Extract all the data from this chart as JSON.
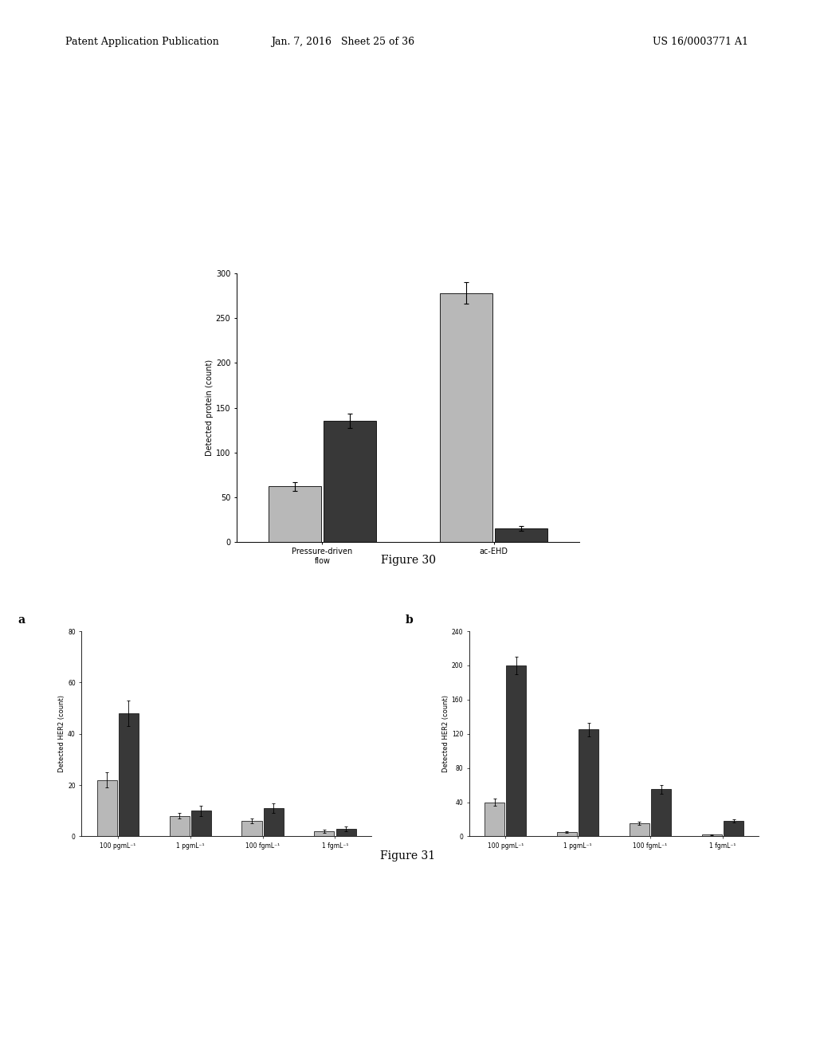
{
  "fig30": {
    "ylabel": "Detected protein (count)",
    "ylim": [
      0,
      300
    ],
    "yticks": [
      0,
      50,
      100,
      150,
      200,
      250,
      300
    ],
    "groups": [
      "Pressure-driven\nflow",
      "ac-EHD"
    ],
    "bar_values": [
      [
        62,
        135
      ],
      [
        278,
        15
      ]
    ],
    "bar_errors": [
      [
        5,
        8
      ],
      [
        12,
        3
      ]
    ],
    "bar_colors": [
      "#b8b8b8",
      "#383838"
    ]
  },
  "fig31a": {
    "panel_label": "a",
    "ylabel": "Detected HER2 (count)",
    "ylim": [
      0,
      80
    ],
    "yticks": [
      0,
      20,
      40,
      60,
      80
    ],
    "categories": [
      "100 pgmL⁻¹",
      "1 pgmL⁻¹",
      "100 fgmL⁻¹",
      "1 fgmL⁻¹"
    ],
    "bar_values": [
      [
        22,
        48
      ],
      [
        8,
        10
      ],
      [
        6,
        11
      ],
      [
        2,
        3
      ]
    ],
    "bar_errors": [
      [
        3,
        5
      ],
      [
        1,
        2
      ],
      [
        1,
        2
      ],
      [
        0.5,
        1
      ]
    ],
    "bar_colors": [
      "#b8b8b8",
      "#383838"
    ]
  },
  "fig31b": {
    "panel_label": "b",
    "ylabel": "Detected HER2 (count)",
    "ylim": [
      0,
      240
    ],
    "yticks": [
      0,
      40,
      80,
      120,
      160,
      200,
      240
    ],
    "categories": [
      "100 pgmL⁻¹",
      "1 pgmL⁻¹",
      "100 fgmL⁻¹",
      "1 fgmL⁻¹"
    ],
    "bar_values": [
      [
        40,
        200
      ],
      [
        5,
        125
      ],
      [
        15,
        55
      ],
      [
        2,
        18
      ]
    ],
    "bar_errors": [
      [
        4,
        10
      ],
      [
        1,
        8
      ],
      [
        2,
        5
      ],
      [
        0.5,
        2
      ]
    ],
    "bar_colors": [
      "#b8b8b8",
      "#383838"
    ]
  },
  "header_left": "Patent Application Publication",
  "header_mid": "Jan. 7, 2016   Sheet 25 of 36",
  "header_right": "US 16/0003771 A1",
  "background_color": "#ffffff",
  "text_color": "#000000"
}
